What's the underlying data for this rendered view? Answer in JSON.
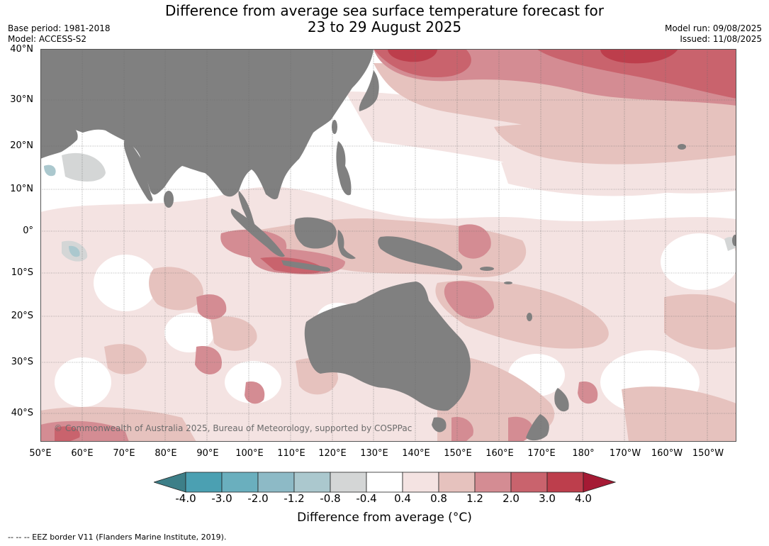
{
  "title": {
    "line1": "Difference from average sea surface temperature forecast for",
    "line2": "23 to 29 August 2025"
  },
  "meta": {
    "base_period": "Base period: 1981-2018",
    "model": "Model: ACCESS-S2",
    "model_run": "Model run: 09/08/2025",
    "issued": "Issued: 11/08/2025"
  },
  "axes": {
    "lat_labels": [
      "40°N",
      "30°N",
      "20°N",
      "10°N",
      "0°",
      "10°S",
      "20°S",
      "30°S",
      "40°S"
    ],
    "lon_labels": [
      "50°E",
      "60°E",
      "70°E",
      "80°E",
      "90°E",
      "100°E",
      "110°E",
      "120°E",
      "130°E",
      "140°E",
      "150°E",
      "160°E",
      "170°E",
      "180°",
      "170°W",
      "160°W",
      "150°W"
    ]
  },
  "map": {
    "copyright": "© Commonwealth of Australia 2025, Bureau of Meteorology, supported by COSPPac",
    "land_color": "#808080",
    "ocean_base_color": "#ffffff"
  },
  "colorbar": {
    "ticks": [
      "-4.0",
      "-3.0",
      "-2.0",
      "-1.2",
      "-0.8",
      "-0.4",
      "0.4",
      "0.8",
      "1.2",
      "2.0",
      "3.0",
      "4.0"
    ],
    "colors": [
      "#3d7f88",
      "#4ba0b2",
      "#6aafbe",
      "#8dbac6",
      "#abc8ce",
      "#d4d6d6",
      "#ffffff",
      "#f4e3e2",
      "#e6c2be",
      "#d48c93",
      "#c9636d",
      "#bd3e4c",
      "#a51a34"
    ],
    "title": "Difference from average (",
    "title_unit": "°C",
    "title_close": ")"
  },
  "footnote": "--  --  -- EEZ border V11 (Flanders Marine Institute, 2019)."
}
